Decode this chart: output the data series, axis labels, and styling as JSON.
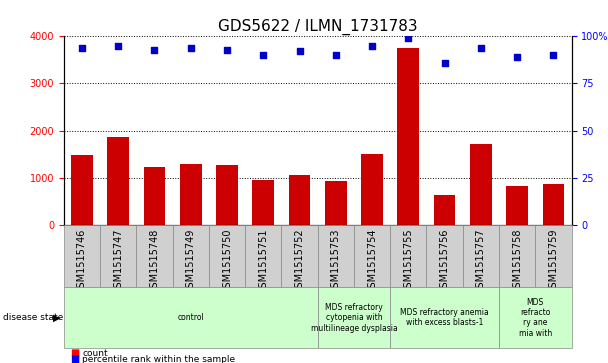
{
  "title": "GDS5622 / ILMN_1731783",
  "samples": [
    "GSM1515746",
    "GSM1515747",
    "GSM1515748",
    "GSM1515749",
    "GSM1515750",
    "GSM1515751",
    "GSM1515752",
    "GSM1515753",
    "GSM1515754",
    "GSM1515755",
    "GSM1515756",
    "GSM1515757",
    "GSM1515758",
    "GSM1515759"
  ],
  "counts": [
    1480,
    1870,
    1240,
    1290,
    1270,
    950,
    1070,
    940,
    1510,
    3750,
    640,
    1710,
    820,
    870
  ],
  "percentile_ranks": [
    94,
    95,
    93,
    94,
    93,
    90,
    92,
    90,
    95,
    99,
    86,
    94,
    89,
    90
  ],
  "disease_groups": [
    {
      "label": "control",
      "start": 0,
      "end": 7,
      "color": "#ccffcc"
    },
    {
      "label": "MDS refractory\ncytopenia with\nmultilineage dysplasia",
      "start": 7,
      "end": 9,
      "color": "#ccffcc"
    },
    {
      "label": "MDS refractory anemia\nwith excess blasts-1",
      "start": 9,
      "end": 12,
      "color": "#ccffcc"
    },
    {
      "label": "MDS\nrefracto\nry ane\nmia with",
      "start": 12,
      "end": 14,
      "color": "#ccffcc"
    }
  ],
  "ylim_left": [
    0,
    4000
  ],
  "ylim_right": [
    0,
    100
  ],
  "yticks_left": [
    0,
    1000,
    2000,
    3000,
    4000
  ],
  "yticks_right": [
    0,
    25,
    50,
    75,
    100
  ],
  "ytick_labels_right": [
    "0",
    "25",
    "50",
    "75",
    "100%"
  ],
  "bar_color": "#cc0000",
  "dot_color": "#0000cc",
  "background_color": "#ffffff",
  "title_fontsize": 11,
  "tick_fontsize": 7,
  "label_fontsize": 7,
  "sample_box_color": "#d0d0d0",
  "sample_box_edge": "#888888"
}
